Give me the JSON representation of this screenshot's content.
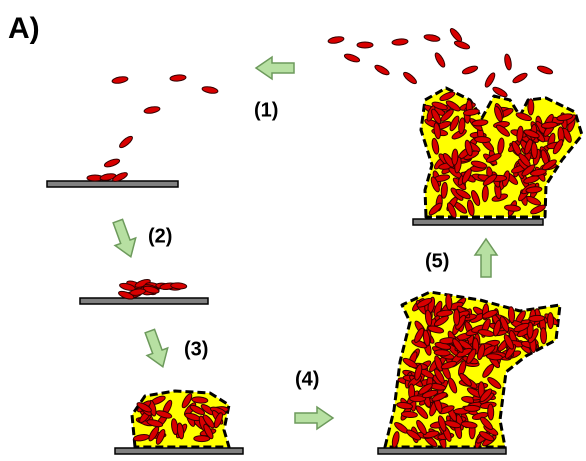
{
  "panel_label": "A)",
  "steps": [
    "(1)",
    "(2)",
    "(3)",
    "(4)",
    "(5)"
  ]
}
